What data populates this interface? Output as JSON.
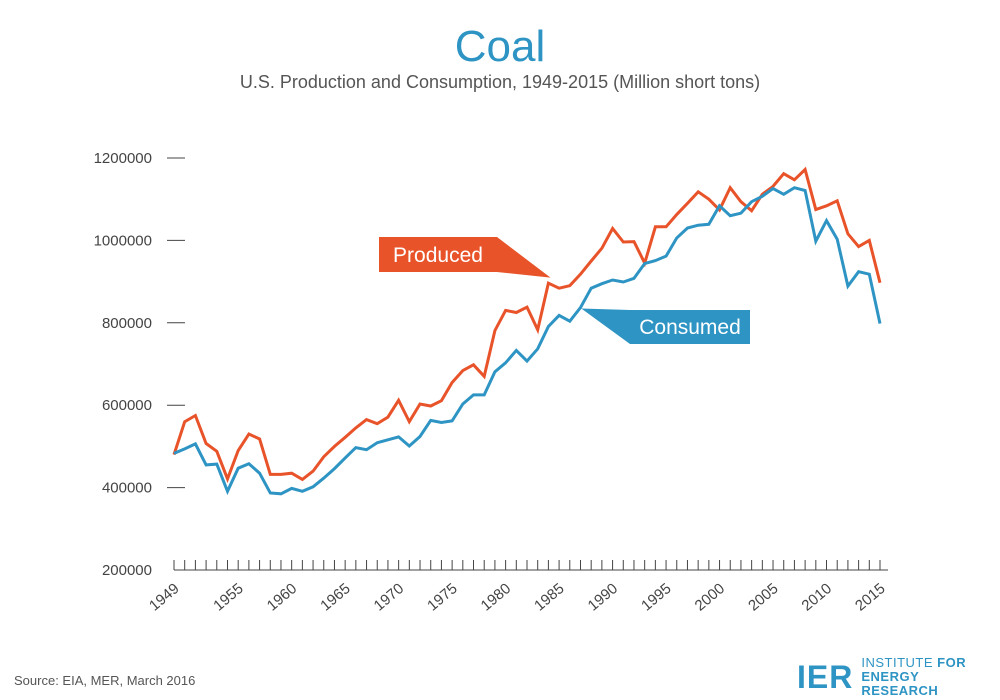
{
  "header": {
    "title": "Coal",
    "subtitle": "U.S. Production and Consumption, 1949-2015 (Million short tons)"
  },
  "colors": {
    "produced": "#e8532a",
    "consumed": "#2e94c4",
    "axis": "#444444"
  },
  "chart_data": {
    "type": "line",
    "title": "Coal",
    "subtitle": "U.S. Production and Consumption, 1949-2015 (Million short tons)",
    "xlabel": "",
    "ylabel": "",
    "xlim": [
      1949,
      2015
    ],
    "ylim": [
      200000,
      1200000
    ],
    "yticks": [
      200000,
      400000,
      600000,
      800000,
      1000000,
      1200000
    ],
    "xticks": [
      1949,
      1955,
      1960,
      1965,
      1970,
      1975,
      1980,
      1985,
      1990,
      1995,
      2000,
      2005,
      2010,
      2015
    ],
    "grid": false,
    "legend": "inline callouts",
    "x": [
      1949,
      1950,
      1951,
      1952,
      1953,
      1954,
      1955,
      1956,
      1957,
      1958,
      1959,
      1960,
      1961,
      1962,
      1963,
      1964,
      1965,
      1966,
      1967,
      1968,
      1969,
      1970,
      1971,
      1972,
      1973,
      1974,
      1975,
      1976,
      1977,
      1978,
      1979,
      1980,
      1981,
      1982,
      1983,
      1984,
      1985,
      1986,
      1987,
      1988,
      1989,
      1990,
      1991,
      1992,
      1993,
      1994,
      1995,
      1996,
      1997,
      1998,
      1999,
      2000,
      2001,
      2002,
      2003,
      2004,
      2005,
      2006,
      2007,
      2008,
      2009,
      2010,
      2011,
      2012,
      2013,
      2014,
      2015
    ],
    "series": [
      {
        "name": "Produced",
        "values": [
          480000,
          560000,
          575000,
          507000,
          488000,
          421000,
          490000,
          530000,
          518000,
          432000,
          432000,
          435000,
          420000,
          440000,
          475000,
          500000,
          522000,
          545000,
          565000,
          555000,
          571000,
          612000,
          560000,
          603000,
          598000,
          611000,
          655000,
          684000,
          698000,
          670000,
          781000,
          830000,
          825000,
          838000,
          783000,
          896000,
          884000,
          890000,
          918000,
          950000,
          981000,
          1029000,
          996000,
          997000,
          945000,
          1033000,
          1033000,
          1063000,
          1090000,
          1118000,
          1100000,
          1074000,
          1128000,
          1094000,
          1072000,
          1112000,
          1131000,
          1162000,
          1147000,
          1172000,
          1075000,
          1084000,
          1096000,
          1016000,
          985000,
          1000000,
          897000
        ]
      },
      {
        "name": "Consumed",
        "values": [
          483000,
          494000,
          506000,
          455000,
          457000,
          391000,
          447000,
          458000,
          435000,
          387000,
          385000,
          398000,
          391000,
          402000,
          423000,
          446000,
          472000,
          497000,
          492000,
          509000,
          516000,
          523000,
          501000,
          524000,
          563000,
          558000,
          562000,
          603000,
          625000,
          625000,
          681000,
          703000,
          733000,
          707000,
          737000,
          791000,
          818000,
          804000,
          837000,
          884000,
          895000,
          904000,
          899000,
          908000,
          944000,
          951000,
          962000,
          1006000,
          1030000,
          1037000,
          1039000,
          1084000,
          1060000,
          1066000,
          1094000,
          1107000,
          1126000,
          1112000,
          1128000,
          1121000,
          998000,
          1048000,
          1003000,
          889000,
          924000,
          918000,
          798000
        ]
      }
    ],
    "annotations": [
      {
        "series": "Produced",
        "text": "Produced"
      },
      {
        "series": "Consumed",
        "text": "Consumed"
      }
    ]
  },
  "footer": {
    "source": "Source: EIA, MER, March 2016",
    "logo_mark": "IER",
    "logo_line1": "INSTITUTE",
    "logo_line1_b": "FOR",
    "logo_line2": "ENERGY RESEARCH"
  }
}
